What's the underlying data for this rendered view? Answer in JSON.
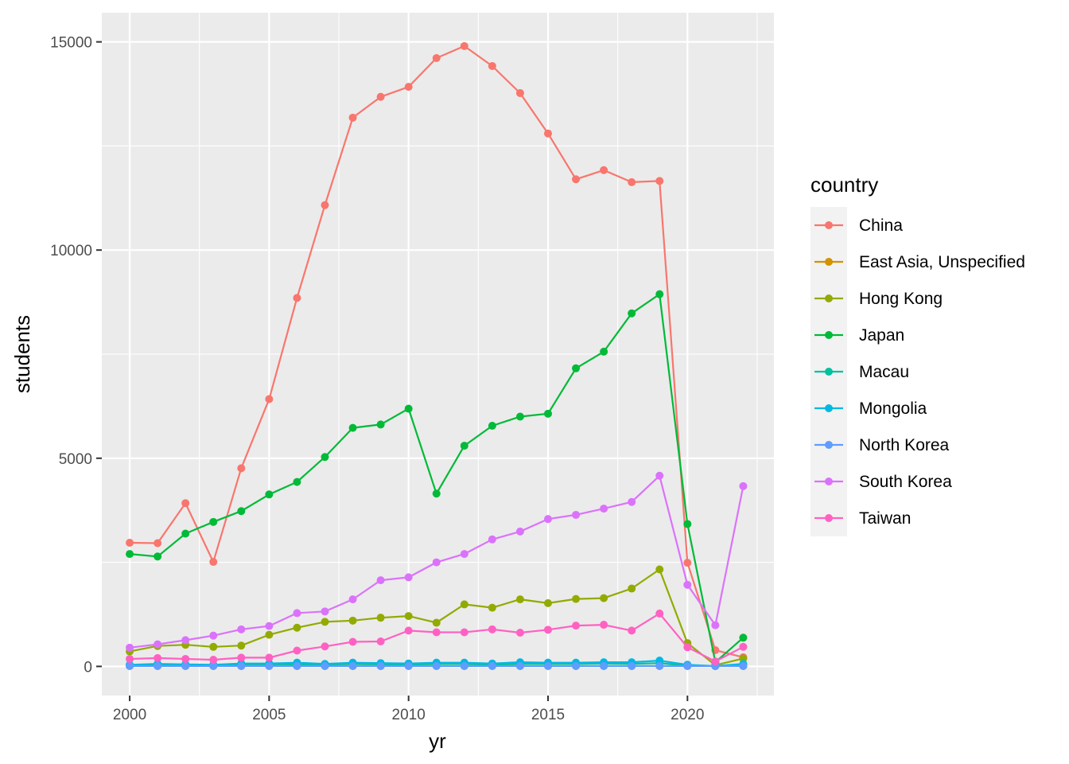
{
  "chart_data": {
    "type": "line",
    "xlabel": "yr",
    "ylabel": "students",
    "xlim": [
      1999.0,
      2023.1
    ],
    "ylim": [
      -700,
      15700
    ],
    "x_ticks": [
      2000,
      2005,
      2010,
      2015,
      2020
    ],
    "y_ticks": [
      0,
      5000,
      10000,
      15000
    ],
    "grid": true,
    "legend": {
      "title": "country",
      "placement": "right"
    },
    "x": [
      2000,
      2001,
      2002,
      2003,
      2004,
      2005,
      2006,
      2007,
      2008,
      2009,
      2010,
      2011,
      2012,
      2013,
      2014,
      2015,
      2016,
      2017,
      2018,
      2019,
      2020,
      2021,
      2022
    ],
    "series": [
      {
        "name": "China",
        "color": "#F8766D",
        "values": [
          2970,
          2960,
          3920,
          2510,
          4760,
          6420,
          8850,
          11080,
          13180,
          13680,
          13920,
          14610,
          14900,
          14420,
          13770,
          12800,
          11700,
          11920,
          11630,
          11660,
          2490,
          390,
          220
        ]
      },
      {
        "name": "East Asia, Unspecified",
        "color": "#D39200",
        "values": [
          10,
          10,
          10,
          10,
          10,
          10,
          10,
          10,
          10,
          10,
          10,
          10,
          10,
          10,
          10,
          10,
          10,
          10,
          10,
          10,
          10,
          10,
          10
        ]
      },
      {
        "name": "Hong Kong",
        "color": "#93AA00",
        "values": [
          360,
          490,
          520,
          470,
          500,
          760,
          930,
          1070,
          1100,
          1170,
          1210,
          1050,
          1490,
          1410,
          1610,
          1520,
          1620,
          1640,
          1870,
          2330,
          560,
          30,
          190
        ]
      },
      {
        "name": "Japan",
        "color": "#00BA38",
        "values": [
          2700,
          2640,
          3190,
          3470,
          3730,
          4130,
          4430,
          5030,
          5730,
          5810,
          6190,
          4150,
          5300,
          5780,
          6000,
          6070,
          7160,
          7560,
          8480,
          8940,
          3420,
          100,
          690
        ]
      },
      {
        "name": "Macau",
        "color": "#00C19F",
        "values": [
          30,
          40,
          40,
          30,
          50,
          50,
          50,
          40,
          60,
          50,
          40,
          60,
          60,
          40,
          60,
          60,
          60,
          70,
          60,
          80,
          20,
          10,
          30
        ]
      },
      {
        "name": "Mongolia",
        "color": "#00B9E3",
        "values": [
          40,
          60,
          50,
          40,
          70,
          70,
          90,
          60,
          90,
          80,
          70,
          90,
          90,
          70,
          100,
          90,
          90,
          100,
          100,
          140,
          40,
          10,
          60
        ]
      },
      {
        "name": "North Korea",
        "color": "#619CFF",
        "values": [
          10,
          10,
          10,
          10,
          10,
          10,
          10,
          10,
          10,
          10,
          10,
          10,
          10,
          10,
          10,
          10,
          10,
          10,
          10,
          10,
          10,
          10,
          10
        ]
      },
      {
        "name": "South Korea",
        "color": "#DB72FB",
        "values": [
          450,
          530,
          630,
          740,
          890,
          970,
          1280,
          1320,
          1610,
          2070,
          2140,
          2500,
          2700,
          3050,
          3240,
          3540,
          3640,
          3790,
          3950,
          4580,
          1960,
          990,
          4330
        ]
      },
      {
        "name": "Taiwan",
        "color": "#FF61C3",
        "values": [
          180,
          200,
          180,
          160,
          210,
          210,
          380,
          480,
          590,
          600,
          860,
          820,
          820,
          890,
          810,
          880,
          980,
          1000,
          860,
          1270,
          460,
          120,
          470
        ]
      }
    ]
  }
}
